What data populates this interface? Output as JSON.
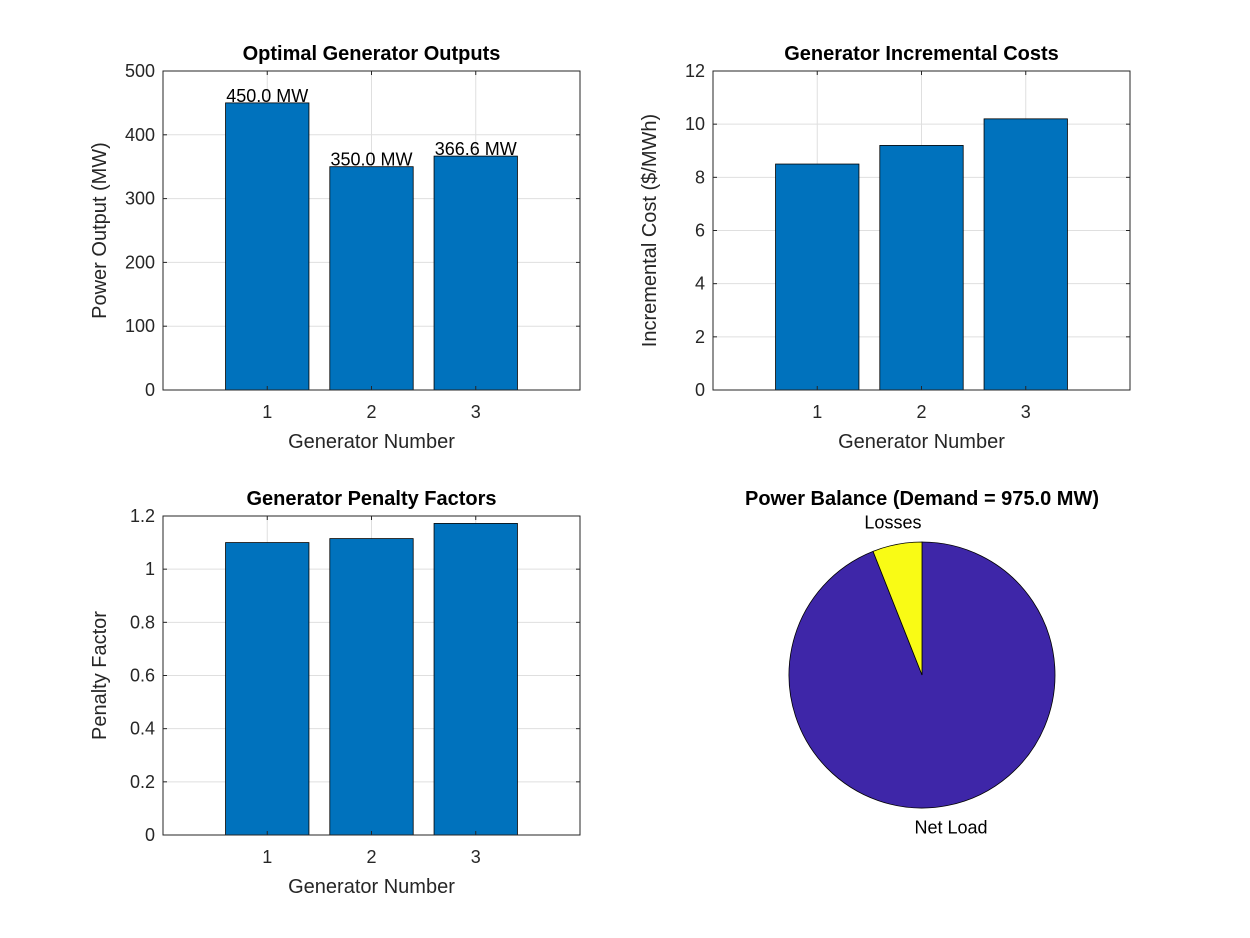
{
  "colors": {
    "bar": "#0072BD",
    "pie_net_load": "#3E26A8",
    "pie_losses": "#F9FB15"
  },
  "chart_data": [
    {
      "type": "bar",
      "title": "Optimal Generator Outputs",
      "xlabel": "Generator Number",
      "ylabel": "Power Output (MW)",
      "categories": [
        "1",
        "2",
        "3"
      ],
      "values": [
        450.0,
        350.0,
        366.6
      ],
      "data_labels": [
        "450.0 MW",
        "350.0 MW",
        "366.6 MW"
      ],
      "xlim": [
        0,
        4
      ],
      "ylim": [
        0,
        500
      ],
      "yticks": [
        0,
        100,
        200,
        300,
        400,
        500
      ],
      "ytick_labels": [
        "0",
        "100",
        "200",
        "300",
        "400",
        "500"
      ],
      "grid": true
    },
    {
      "type": "bar",
      "title": "Generator Incremental Costs",
      "xlabel": "Generator Number",
      "ylabel": "Incremental Cost ($/MWh)",
      "categories": [
        "1",
        "2",
        "3"
      ],
      "values": [
        8.5,
        9.2,
        10.2
      ],
      "xlim": [
        0,
        4
      ],
      "ylim": [
        0,
        12
      ],
      "yticks": [
        0,
        2,
        4,
        6,
        8,
        10,
        12
      ],
      "ytick_labels": [
        "0",
        "2",
        "4",
        "6",
        "8",
        "10",
        "12"
      ],
      "grid": true
    },
    {
      "type": "bar",
      "title": "Generator Penalty Factors",
      "xlabel": "Generator Number",
      "ylabel": "Penalty Factor",
      "categories": [
        "1",
        "2",
        "3"
      ],
      "values": [
        1.1,
        1.115,
        1.172
      ],
      "xlim": [
        0,
        4
      ],
      "ylim": [
        0,
        1.2
      ],
      "yticks": [
        0,
        0.2,
        0.4,
        0.6,
        0.8,
        1,
        1.2
      ],
      "ytick_labels": [
        "0",
        "0.2",
        "0.4",
        "0.6",
        "0.8",
        "1",
        "1.2"
      ],
      "grid": true
    },
    {
      "type": "pie",
      "title": "Power Balance (Demand = 975.0 MW)",
      "labels": [
        "Net Load",
        "Losses"
      ],
      "values": [
        0.94,
        0.06
      ]
    }
  ]
}
